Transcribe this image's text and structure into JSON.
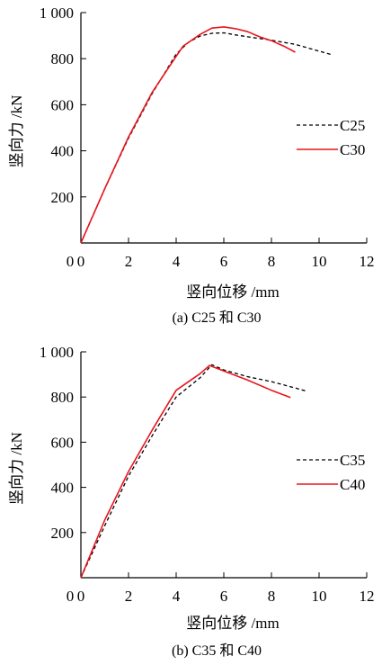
{
  "chart_data": [
    {
      "type": "line",
      "caption": "(a) C25 和 C30",
      "xlabel": "竖向位移 /mm",
      "ylabel": "竖向力 /kN",
      "xlim": [
        0,
        12
      ],
      "ylim": [
        0,
        1000
      ],
      "xticks": [
        0,
        2,
        4,
        6,
        8,
        10,
        12
      ],
      "xtick_labels": [
        "0",
        "2",
        "4",
        "6",
        "8",
        "10",
        "12"
      ],
      "yticks": [
        200,
        400,
        600,
        800,
        1000
      ],
      "ytick_labels": [
        "200",
        "400",
        "600",
        "800",
        "1 000"
      ],
      "grid": false,
      "legend_position": "right",
      "series": [
        {
          "name": "C25",
          "color": "#000000",
          "dash": "dashed",
          "points": [
            [
              0,
              0
            ],
            [
              1,
              235
            ],
            [
              2,
              455
            ],
            [
              3,
              650
            ],
            [
              4,
              820
            ],
            [
              4.5,
              870
            ],
            [
              5,
              898
            ],
            [
              5.5,
              910
            ],
            [
              6,
              912
            ],
            [
              6.5,
              903
            ],
            [
              7,
              895
            ],
            [
              8,
              880
            ],
            [
              9,
              862
            ],
            [
              10,
              833
            ],
            [
              10.5,
              818
            ]
          ]
        },
        {
          "name": "C30",
          "color": "#e8141c",
          "dash": "solid",
          "points": [
            [
              0,
              0
            ],
            [
              1,
              235
            ],
            [
              2,
              460
            ],
            [
              3,
              655
            ],
            [
              4,
              810
            ],
            [
              4.3,
              855
            ],
            [
              5,
              905
            ],
            [
              5.5,
              933
            ],
            [
              6,
              938
            ],
            [
              6.5,
              930
            ],
            [
              7,
              917
            ],
            [
              7.5,
              895
            ],
            [
              8,
              878
            ],
            [
              8.5,
              855
            ],
            [
              9,
              828
            ]
          ]
        }
      ]
    },
    {
      "type": "line",
      "caption": "(b) C35 和 C40",
      "xlabel": "竖向位移 /mm",
      "ylabel": "竖向力 /kN",
      "xlim": [
        0,
        12
      ],
      "ylim": [
        0,
        1000
      ],
      "xticks": [
        0,
        2,
        4,
        6,
        8,
        10,
        12
      ],
      "xtick_labels": [
        "0",
        "2",
        "4",
        "6",
        "8",
        "10",
        "12"
      ],
      "yticks": [
        200,
        400,
        600,
        800,
        1000
      ],
      "ytick_labels": [
        "200",
        "400",
        "600",
        "800",
        "1 000"
      ],
      "grid": false,
      "legend_position": "right",
      "series": [
        {
          "name": "C35",
          "color": "#000000",
          "dash": "dashed",
          "points": [
            [
              0,
              0
            ],
            [
              1,
              230
            ],
            [
              2,
              450
            ],
            [
              3,
              630
            ],
            [
              4,
              800
            ],
            [
              5,
              885
            ],
            [
              5.5,
              943
            ],
            [
              6,
              920
            ],
            [
              7,
              890
            ],
            [
              8,
              868
            ],
            [
              9,
              840
            ],
            [
              9.5,
              825
            ]
          ]
        },
        {
          "name": "C40",
          "color": "#e8141c",
          "dash": "solid",
          "points": [
            [
              0,
              0
            ],
            [
              1,
              255
            ],
            [
              2,
              470
            ],
            [
              3,
              655
            ],
            [
              4,
              830
            ],
            [
              5,
              903
            ],
            [
              5.4,
              940
            ],
            [
              6,
              915
            ],
            [
              7,
              875
            ],
            [
              8,
              830
            ],
            [
              8.8,
              798
            ]
          ]
        }
      ]
    }
  ]
}
